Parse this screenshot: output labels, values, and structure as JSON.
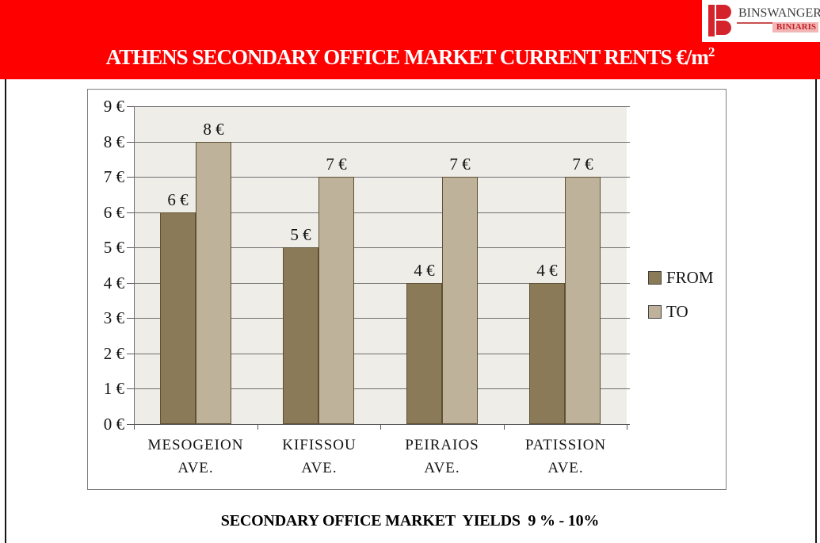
{
  "header": {
    "title_main": "ATHENS SECONDARY OFFICE MARKET CURRENT RENTS €/m",
    "title_superscript": "2",
    "background": "#FE0000",
    "logo": {
      "brand": "BINSWANGER",
      "sub": "BINIARIS",
      "brand_color": "#3C3C3C",
      "sub_color": "#C22128",
      "mark_color": "#D5232B",
      "strip_color": "#F2B7B5"
    }
  },
  "chart_data": {
    "type": "bar",
    "title": "ATHENS SECONDARY OFFICE MARKET CURRENT RENTS €/m2",
    "categories": [
      [
        "MESOGEION",
        "AVE."
      ],
      [
        "KIFISSOU",
        "AVE."
      ],
      [
        "PEIRAIOS",
        "AVE."
      ],
      [
        "PATISSION",
        "AVE."
      ]
    ],
    "series": [
      {
        "name": "FROM",
        "color": "#8B7A57",
        "values": [
          6,
          5,
          4,
          4
        ]
      },
      {
        "name": "TO",
        "color": "#BFB29B",
        "values": [
          8,
          7,
          7,
          7
        ]
      }
    ],
    "data_labels": [
      "6 €",
      "8 €",
      "5 €",
      "7 €",
      "4 €",
      "7 €",
      "4 €",
      "7 €"
    ],
    "value_suffix": " €",
    "ylim": [
      0,
      9
    ],
    "ytick_step": 1,
    "ytick_labels": [
      "0 €",
      "1 €",
      "2 €",
      "3 €",
      "4 €",
      "5 €",
      "6 €",
      "7 €",
      "8 €",
      "9 €"
    ],
    "grid": true,
    "legend_position": "right",
    "plot_bg": "#EFEDE8",
    "gridline_color": "#6E6E6E",
    "bar_border_color": "#5E5034"
  },
  "footer": {
    "caption": "SECONDARY OFFICE MARKET  YIELDS  9 % - 10%"
  }
}
